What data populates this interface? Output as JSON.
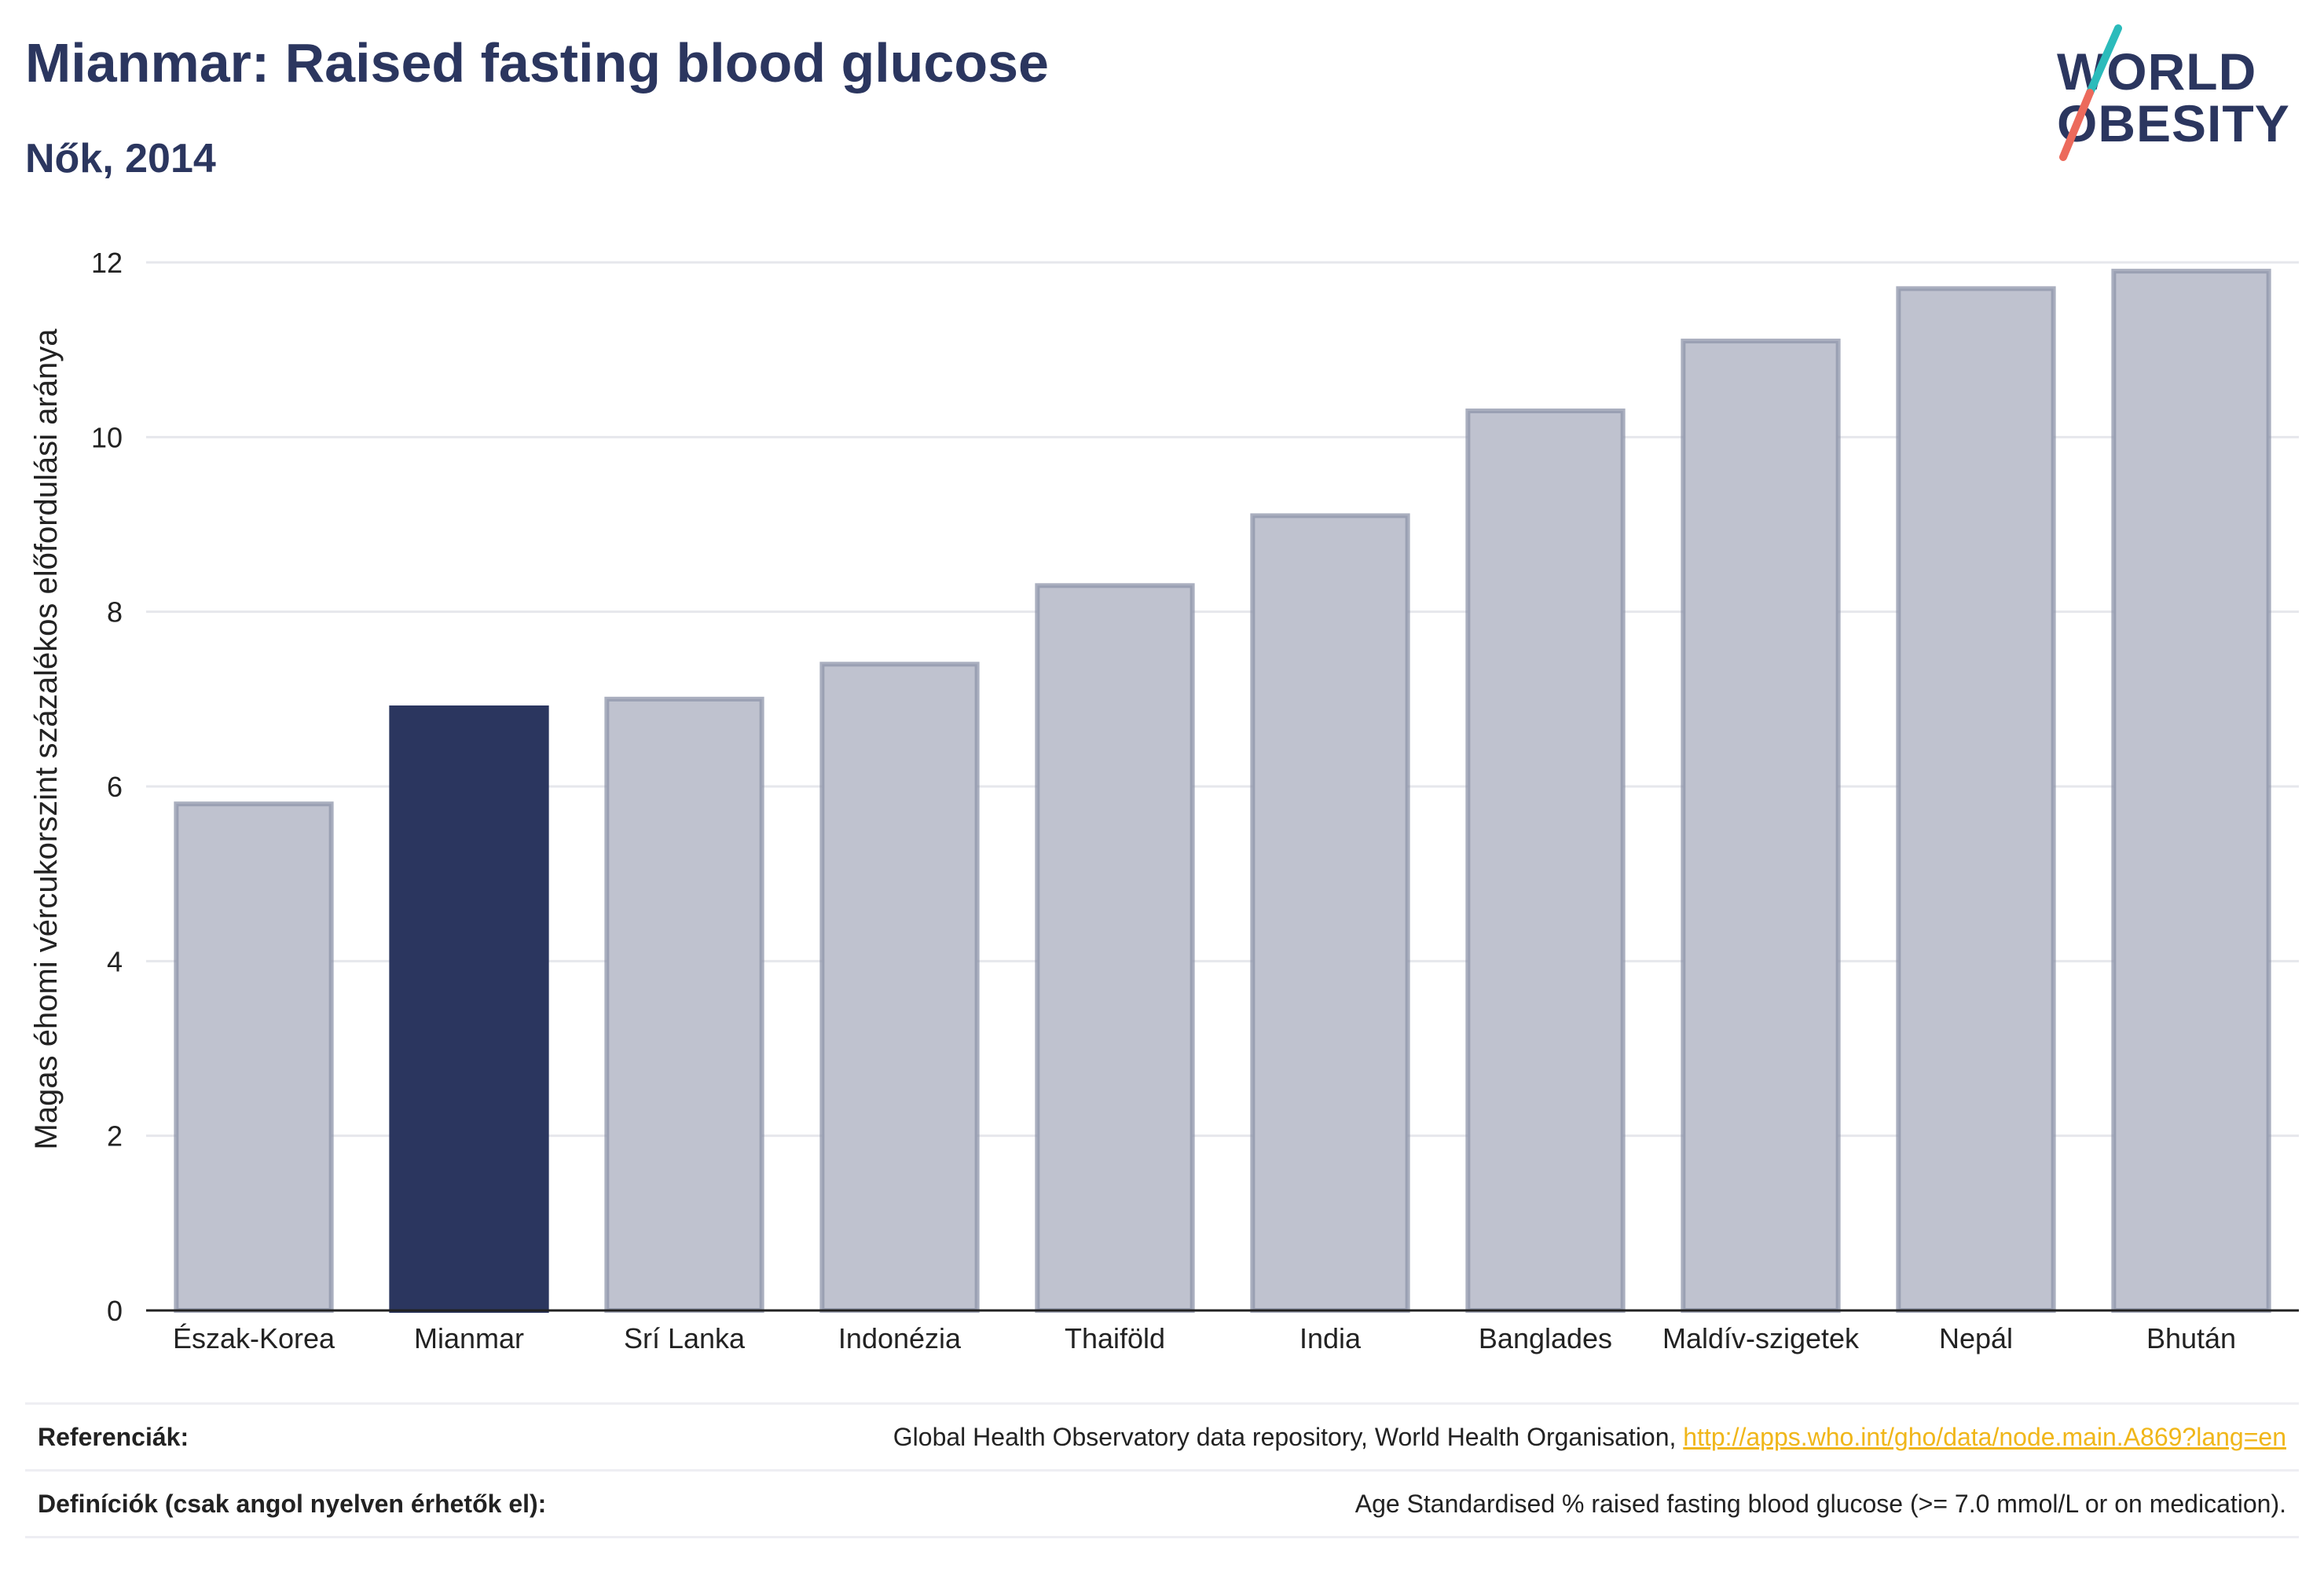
{
  "header": {
    "title": "Mianmar: Raised fasting blood glucose",
    "subtitle": "Nők, 2014"
  },
  "logo": {
    "line1": "WORLD",
    "line2": "OBESITY"
  },
  "chart_data": {
    "type": "bar",
    "categories": [
      "Észak-Korea",
      "Mianmar",
      "Srí Lanka",
      "Indonézia",
      "Thaiföld",
      "India",
      "Banglades",
      "Maldív-szigetek",
      "Nepál",
      "Bhután"
    ],
    "values": [
      5.8,
      6.9,
      7.0,
      7.4,
      8.3,
      9.1,
      10.3,
      11.1,
      11.7,
      11.9
    ],
    "highlight": "Mianmar",
    "ylabel": "Magas éhomi vércukorszint százalékos előfordulási aránya",
    "ylim": [
      0,
      12
    ],
    "yticks": [
      0,
      2,
      4,
      6,
      8,
      10,
      12
    ],
    "grid": true,
    "colors": {
      "bar": "#2b365f",
      "bar_muted_fill": "#bfc2cf",
      "bar_muted_stroke": "#8e94aa",
      "grid": "#e6e7ec",
      "axis": "#222222"
    }
  },
  "references": {
    "label": "Referenciák:",
    "text": "Global Health Observatory data repository, World Health Organisation,",
    "link": "http://apps.who.int/gho/data/node.main.A869?lang=en"
  },
  "definitions": {
    "label": "Definíciók (csak angol nyelven érhetők el):",
    "text": "Age Standardised % raised fasting blood glucose (>= 7.0 mmol/L or on medication)."
  },
  "colors": {
    "brand_navy": "#2b365f",
    "logo_teal": "#2bbbbb",
    "logo_coral": "#ec6a5c",
    "link": "#f0b619"
  }
}
